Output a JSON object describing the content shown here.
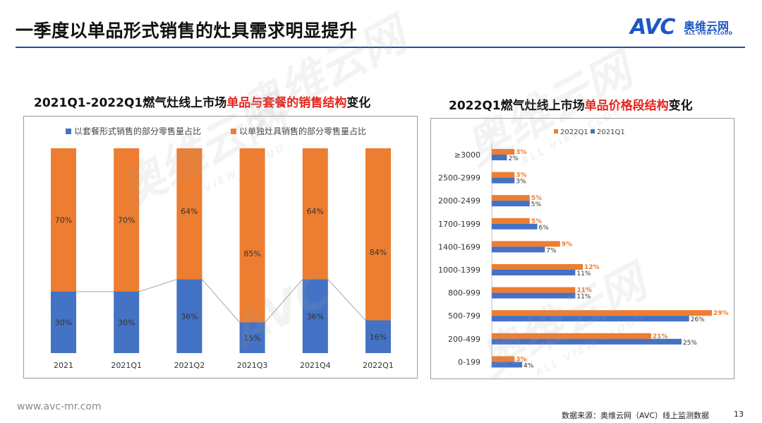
{
  "header": {
    "title": "一季度以单品形式销售的灶具需求明显提升"
  },
  "logo": {
    "mark": "AVC",
    "cn": "奥维云网",
    "en": "ALL VIEW CLOUD"
  },
  "left_chart": {
    "title_pre": "2021Q1-2022Q1燃气灶线上市场",
    "title_hl": "单品与套餐的销售结构",
    "title_post": "变化"
  },
  "right_chart": {
    "title_pre": "2022Q1燃气灶线上市场",
    "title_hl": "单品价格段结构",
    "title_post": "变化"
  },
  "colors": {
    "blue": "#4472c4",
    "orange": "#ed7d31",
    "accent_red": "#e8231b",
    "brand_blue": "#1d57c4"
  },
  "watermark": {
    "text": "奥维云网",
    "sub": "ALL VIEW CLOUD",
    "mark": "AVC"
  },
  "chart_data": [
    {
      "type": "bar",
      "stacked": true,
      "percent": true,
      "categories": [
        "2021",
        "2021Q1",
        "2021Q2",
        "2021Q3",
        "2021Q4",
        "2022Q1"
      ],
      "series": [
        {
          "name": "以套餐形式销售的部分零售量占比",
          "values": [
            30,
            30,
            36,
            15,
            36,
            16
          ],
          "labels": [
            "30%",
            "30%",
            "36%",
            "15%",
            "36%",
            "16%"
          ]
        },
        {
          "name": "以单独灶具销售的部分零售量占比",
          "values": [
            70,
            70,
            64,
            85,
            64,
            84
          ],
          "labels": [
            "70%",
            "70%",
            "64%",
            "85%",
            "64%",
            "84%"
          ]
        }
      ],
      "ylim": [
        0,
        100
      ],
      "legend": "top",
      "xlabel": "",
      "ylabel": ""
    },
    {
      "type": "bar",
      "orientation": "horizontal",
      "categories": [
        "≥3000",
        "2500-2999",
        "2000-2499",
        "1700-1999",
        "1400-1699",
        "1000-1399",
        "800-999",
        "500-799",
        "200-499",
        "0-199"
      ],
      "series": [
        {
          "name": "2022Q1",
          "values": [
            3,
            3,
            5,
            5,
            9,
            12,
            11,
            29,
            21,
            3
          ],
          "labels": [
            "3%",
            "3%",
            "5%",
            "5%",
            "9%",
            "12%",
            "11%",
            "29%",
            "21%",
            "3%"
          ]
        },
        {
          "name": "2021Q1",
          "values": [
            2,
            3,
            5,
            6,
            7,
            11,
            11,
            26,
            25,
            4
          ],
          "labels": [
            "2%",
            "3%",
            "5%",
            "6%",
            "7%",
            "11%",
            "11%",
            "26%",
            "25%",
            "4%"
          ]
        }
      ],
      "xlim": [
        0,
        29
      ],
      "legend": "top",
      "xlabel": "",
      "ylabel": ""
    }
  ],
  "footer": {
    "url": "www.avc-mr.com",
    "source": "数据来源：奥维云网（AVC）线上监测数据",
    "page": "13"
  }
}
